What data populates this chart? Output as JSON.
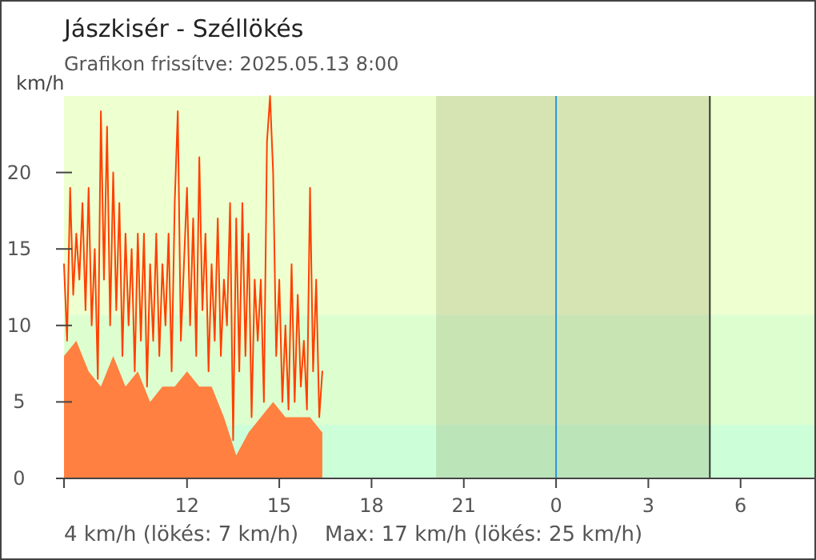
{
  "chart_data": {
    "type": "area",
    "title": "Jászkisér - Széllökés",
    "subtitle": "Grafikon frissítve: 2025.05.13 8:00",
    "ylabel": "km/h",
    "annotations": [
      "4 km/h  (lökés: 7 km/h)",
      "Max: 17 km/h (lökés: 25 km/h)"
    ],
    "xlim": [
      "2025-05-13T08:00",
      "2025-05-14T08:24"
    ],
    "xticks": [
      {
        "value": "2025-05-13T08:00",
        "label": null
      },
      {
        "value": "2025-05-13T12:00",
        "label": "12"
      },
      {
        "value": "2025-05-13T15:00",
        "label": "15"
      },
      {
        "value": "2025-05-13T18:00",
        "label": "18"
      },
      {
        "value": "2025-05-13T21:00",
        "label": "21"
      },
      {
        "value": "2025-05-14T00:00",
        "label": "0"
      },
      {
        "value": "2025-05-14T03:00",
        "label": "3"
      },
      {
        "value": "2025-05-14T06:00",
        "label": "6"
      }
    ],
    "ylim": [
      0,
      25
    ],
    "yticks": [
      0,
      5,
      10,
      15,
      20
    ],
    "grid": false,
    "bands": [
      {
        "axis": "y",
        "from": 10.7,
        "to": 25,
        "color": "#eeffd0"
      },
      {
        "axis": "y",
        "from": 3.5,
        "to": 10.7,
        "color": "#ddffd0"
      },
      {
        "axis": "y",
        "from": 0,
        "to": 3.5,
        "color": "#ccffd8"
      },
      {
        "axis": "x",
        "from": "2025-05-13T20:06",
        "to": "2025-05-14T05:00",
        "color": "#7a7a40"
      }
    ],
    "ref_lines": [
      {
        "axis": "x",
        "value": "2025-05-14T00:00",
        "color": "#2a96e0"
      },
      {
        "axis": "x",
        "value": "2025-05-14T05:00",
        "color": "#333333"
      }
    ],
    "series": [
      {
        "color": "#ff8040",
        "x": [
          "2025-05-13T08:00",
          "2025-05-13T08:24",
          "2025-05-13T08:48",
          "2025-05-13T09:12",
          "2025-05-13T09:36",
          "2025-05-13T10:00",
          "2025-05-13T10:24",
          "2025-05-13T10:48",
          "2025-05-13T11:12",
          "2025-05-13T11:36",
          "2025-05-13T12:00",
          "2025-05-13T12:24",
          "2025-05-13T12:48",
          "2025-05-13T13:12",
          "2025-05-13T13:36",
          "2025-05-13T14:00",
          "2025-05-13T14:24",
          "2025-05-13T14:48",
          "2025-05-13T15:12",
          "2025-05-13T15:36",
          "2025-05-13T16:00",
          "2025-05-13T16:24"
        ],
        "values": [
          8,
          9,
          7,
          6,
          8,
          6,
          7,
          5,
          6,
          6,
          7,
          6,
          6,
          4,
          1.5,
          3,
          4,
          5,
          4,
          4,
          4,
          3
        ]
      },
      {
        "type": "line",
        "color": "#ff4000",
        "x": [
          "2025-05-13T08:00",
          "2025-05-13T08:06",
          "2025-05-13T08:12",
          "2025-05-13T08:18",
          "2025-05-13T08:24",
          "2025-05-13T08:30",
          "2025-05-13T08:36",
          "2025-05-13T08:42",
          "2025-05-13T08:48",
          "2025-05-13T08:54",
          "2025-05-13T09:00",
          "2025-05-13T09:06",
          "2025-05-13T09:12",
          "2025-05-13T09:18",
          "2025-05-13T09:24",
          "2025-05-13T09:30",
          "2025-05-13T09:36",
          "2025-05-13T09:42",
          "2025-05-13T09:48",
          "2025-05-13T09:54",
          "2025-05-13T10:00",
          "2025-05-13T10:06",
          "2025-05-13T10:12",
          "2025-05-13T10:18",
          "2025-05-13T10:24",
          "2025-05-13T10:30",
          "2025-05-13T10:36",
          "2025-05-13T10:42",
          "2025-05-13T10:48",
          "2025-05-13T10:54",
          "2025-05-13T11:00",
          "2025-05-13T11:06",
          "2025-05-13T11:12",
          "2025-05-13T11:18",
          "2025-05-13T11:24",
          "2025-05-13T11:30",
          "2025-05-13T11:36",
          "2025-05-13T11:42",
          "2025-05-13T11:48",
          "2025-05-13T11:54",
          "2025-05-13T12:00",
          "2025-05-13T12:06",
          "2025-05-13T12:12",
          "2025-05-13T12:18",
          "2025-05-13T12:24",
          "2025-05-13T12:30",
          "2025-05-13T12:36",
          "2025-05-13T12:42",
          "2025-05-13T12:48",
          "2025-05-13T12:54",
          "2025-05-13T13:00",
          "2025-05-13T13:06",
          "2025-05-13T13:12",
          "2025-05-13T13:18",
          "2025-05-13T13:24",
          "2025-05-13T13:30",
          "2025-05-13T13:36",
          "2025-05-13T13:42",
          "2025-05-13T13:48",
          "2025-05-13T13:54",
          "2025-05-13T14:00",
          "2025-05-13T14:06",
          "2025-05-13T14:12",
          "2025-05-13T14:18",
          "2025-05-13T14:24",
          "2025-05-13T14:30",
          "2025-05-13T14:36",
          "2025-05-13T14:42",
          "2025-05-13T14:48",
          "2025-05-13T14:54",
          "2025-05-13T15:00",
          "2025-05-13T15:06",
          "2025-05-13T15:12",
          "2025-05-13T15:18",
          "2025-05-13T15:24",
          "2025-05-13T15:30",
          "2025-05-13T15:36",
          "2025-05-13T15:42",
          "2025-05-13T15:48",
          "2025-05-13T15:54",
          "2025-05-13T16:00",
          "2025-05-13T16:06",
          "2025-05-13T16:12",
          "2025-05-13T16:18",
          "2025-05-13T16:24"
        ],
        "values": [
          14,
          9,
          19,
          12,
          16,
          13,
          18,
          11,
          19,
          10,
          15,
          6.5,
          24,
          13,
          23,
          10,
          20,
          11,
          18,
          8,
          16,
          10,
          15,
          7,
          16,
          9,
          16,
          6,
          14,
          9,
          16,
          8,
          14,
          10,
          16,
          7,
          18,
          24,
          9,
          14,
          19,
          10,
          17,
          8,
          21,
          11,
          16,
          7,
          14,
          9,
          17,
          8,
          13,
          10,
          18,
          2.5,
          17,
          7,
          18,
          8,
          16,
          4,
          13,
          9,
          13,
          5,
          22,
          25,
          20,
          8,
          13,
          5,
          10,
          4.5,
          14,
          5,
          12,
          6,
          9,
          4.5,
          19,
          7,
          13,
          4,
          7
        ]
      }
    ]
  }
}
